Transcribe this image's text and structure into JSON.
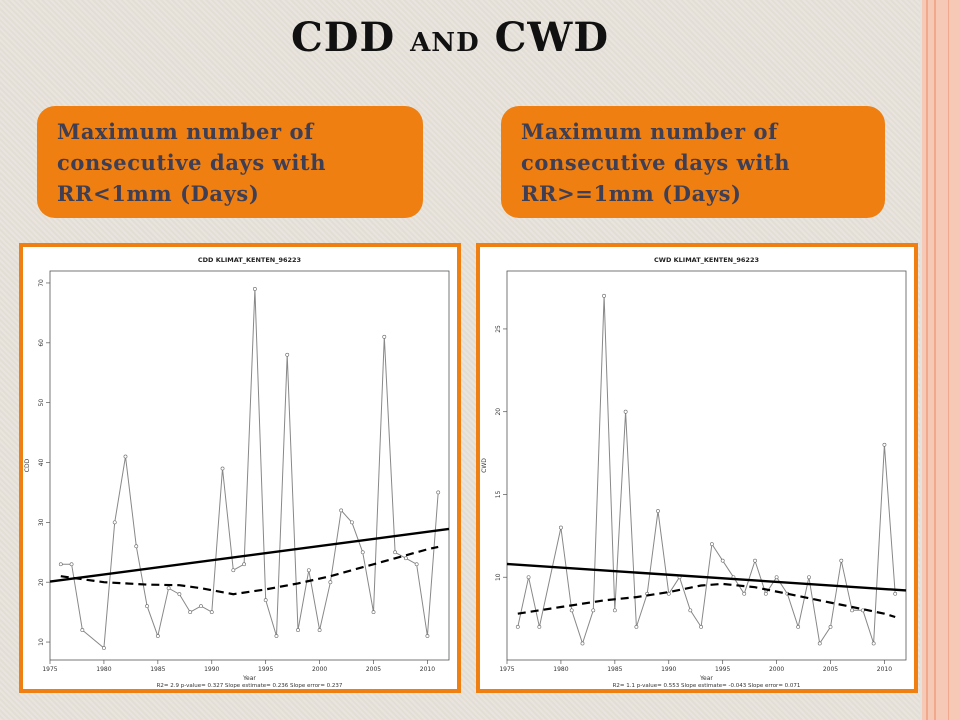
{
  "slide": {
    "title_part1": "CDD",
    "title_part2": "and",
    "title_part3": "CWD",
    "callout_left": "Maximum number of consecutive days with RR<1mm (Days)",
    "callout_right": "Maximum number of consecutive days with RR>=1mm  (Days)"
  },
  "chart_data": [
    {
      "type": "line",
      "title": "CDD  KLIMAT_KENTEN_96223",
      "xlabel": "Year",
      "ylabel": "CDD",
      "footer": "R2= 2.9  p-value= 0.327  Slope estimate= 0.236  Slope error= 0.237",
      "xlim": [
        1975,
        2012
      ],
      "ylim": [
        7,
        72
      ],
      "xticks": [
        1975,
        1980,
        1985,
        1990,
        1995,
        2000,
        2005,
        2010
      ],
      "yticks": [
        10,
        20,
        30,
        40,
        50,
        60,
        70
      ],
      "x": [
        1976,
        1977,
        1978,
        1980,
        1981,
        1982,
        1983,
        1984,
        1985,
        1986,
        1987,
        1988,
        1989,
        1990,
        1991,
        1992,
        1993,
        1994,
        1995,
        1996,
        1997,
        1998,
        1999,
        2000,
        2001,
        2002,
        2003,
        2004,
        2005,
        2006,
        2007,
        2008,
        2009,
        2010,
        2011
      ],
      "values": [
        23,
        23,
        12,
        9,
        30,
        41,
        26,
        16,
        11,
        19,
        18,
        15,
        16,
        15,
        39,
        22,
        23,
        69,
        17,
        11,
        58,
        12,
        22,
        12,
        20,
        32,
        30,
        25,
        15,
        61,
        25,
        24,
        23,
        11,
        35
      ],
      "trend": {
        "start": [
          1975,
          20.1
        ],
        "end": [
          2012,
          28.9
        ]
      },
      "smooth": [
        [
          1976,
          21
        ],
        [
          1980,
          20
        ],
        [
          1984,
          19.6
        ],
        [
          1987,
          19.5
        ],
        [
          1989,
          19
        ],
        [
          1992,
          18
        ],
        [
          1995,
          18.8
        ],
        [
          1998,
          19.8
        ],
        [
          2001,
          21
        ],
        [
          2004,
          22.5
        ],
        [
          2007,
          24
        ],
        [
          2010,
          25.5
        ],
        [
          2011,
          25.9
        ]
      ]
    },
    {
      "type": "line",
      "title": "CWD  KLIMAT_KENTEN_96223",
      "xlabel": "Year",
      "ylabel": "CWD",
      "footer": "R2= 1.1  p-value= 0.553  Slope estimate= -0.043  Slope error= 0.071",
      "xlim": [
        1975,
        2012
      ],
      "ylim": [
        5,
        28.5
      ],
      "xticks": [
        1975,
        1980,
        1985,
        1990,
        1995,
        2000,
        2005,
        2010
      ],
      "yticks": [
        10,
        15,
        20,
        25
      ],
      "x": [
        1976,
        1977,
        1978,
        1980,
        1981,
        1982,
        1983,
        1984,
        1985,
        1986,
        1987,
        1988,
        1989,
        1990,
        1991,
        1992,
        1993,
        1994,
        1995,
        1996,
        1997,
        1998,
        1999,
        2000,
        2001,
        2002,
        2003,
        2004,
        2005,
        2006,
        2007,
        2008,
        2009,
        2010,
        2011
      ],
      "values": [
        7,
        10,
        7,
        13,
        8,
        6,
        8,
        27,
        8,
        20,
        7,
        9,
        14,
        9,
        10,
        8,
        7,
        12,
        11,
        10,
        9,
        11,
        9,
        10,
        9,
        7,
        10,
        6,
        7,
        11,
        8,
        8,
        6,
        18,
        9
      ],
      "trend": {
        "start": [
          1975,
          10.8
        ],
        "end": [
          2012,
          9.2
        ]
      },
      "smooth": [
        [
          1976,
          7.8
        ],
        [
          1980,
          8.2
        ],
        [
          1984,
          8.6
        ],
        [
          1987,
          8.8
        ],
        [
          1990,
          9.1
        ],
        [
          1993,
          9.5
        ],
        [
          1995,
          9.6
        ],
        [
          1998,
          9.4
        ],
        [
          2001,
          9.0
        ],
        [
          2004,
          8.6
        ],
        [
          2007,
          8.2
        ],
        [
          2010,
          7.8
        ],
        [
          2011,
          7.6
        ]
      ]
    }
  ]
}
